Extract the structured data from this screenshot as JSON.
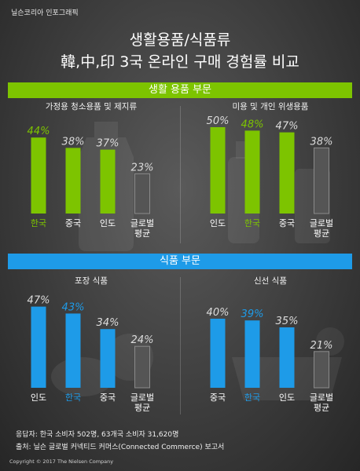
{
  "brand": "닐슨코리아 인포그래픽",
  "title_line1": "생활용품/식품류",
  "title_line2": "韓,中,印 3국 온라인 구매 경험률 비교",
  "section1": "생활 용품 부문",
  "section2": "식품 부문",
  "colors": {
    "green": "#7dc400",
    "blue": "#1e9be8",
    "gray": "#555555",
    "text": "#dcdcdc"
  },
  "chart_data": [
    {
      "type": "bar",
      "title": "가정용 청소용품 및 제지류",
      "categories": [
        "한국",
        "중국",
        "인도",
        "글로벌\n평균"
      ],
      "values": [
        44,
        38,
        37,
        23
      ],
      "highlight": 0,
      "accent": "#7dc400",
      "unit": "%"
    },
    {
      "type": "bar",
      "title": "미용 및 개인 위생용품",
      "categories": [
        "인도",
        "한국",
        "중국",
        "글로벌\n평균"
      ],
      "values": [
        50,
        48,
        47,
        38
      ],
      "highlight": 1,
      "accent": "#7dc400",
      "unit": "%"
    },
    {
      "type": "bar",
      "title": "포장 식품",
      "categories": [
        "인도",
        "한국",
        "중국",
        "글로벌\n평균"
      ],
      "values": [
        47,
        43,
        34,
        24
      ],
      "highlight": 1,
      "accent": "#1e9be8",
      "unit": "%"
    },
    {
      "type": "bar",
      "title": "신선 식품",
      "categories": [
        "중국",
        "한국",
        "인도",
        "글로벌\n평균"
      ],
      "values": [
        40,
        39,
        35,
        21
      ],
      "highlight": 1,
      "accent": "#1e9be8",
      "unit": "%"
    }
  ],
  "footnote1": "응답자: 한국 소비자 502명, 63개국 소비자 31,620명",
  "footnote2": "출처: 닐슨 글로벌 커넥티드 커머스(Connected Commerce) 보고서",
  "copyright": "Copyright © 2017 The Nielsen Company"
}
